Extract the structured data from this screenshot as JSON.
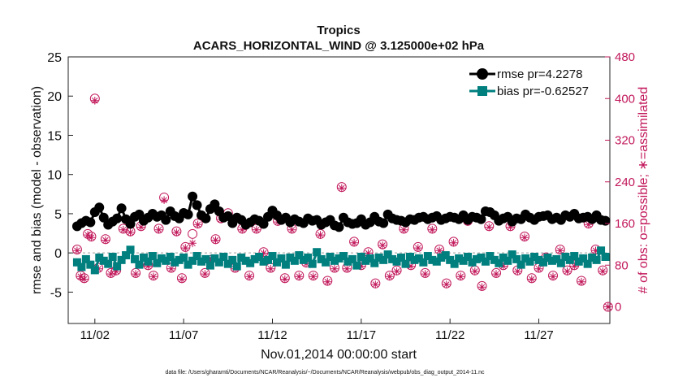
{
  "chart_data": {
    "type": "line",
    "title": "Tropics",
    "subtitle": "ACARS_HORIZONTAL_WIND @ 3.125000e+02 hPa",
    "xlabel": "Nov.01,2014 00:00:00 start",
    "ylabel_left": "rmse and bias (model - observation)",
    "ylabel_right": "# of obs: o=possible; ∗=assimilated",
    "footer": "data file: /Users/gharamti/Documents/NCAR/Reanalysis/~/Documents/NCAR/Reanalysis/webpub/obs_diag_output_2014-11.nc",
    "xlim": [
      0.5,
      31
    ],
    "ylim_left": [
      -9,
      25
    ],
    "ylim_right": [
      -32,
      480
    ],
    "x_ticks": [
      {
        "value": 2,
        "label": "11/02"
      },
      {
        "value": 7,
        "label": "11/07"
      },
      {
        "value": 12,
        "label": "11/12"
      },
      {
        "value": 17,
        "label": "11/17"
      },
      {
        "value": 22,
        "label": "11/22"
      },
      {
        "value": 27,
        "label": "11/27"
      }
    ],
    "y_ticks_left": [
      -5,
      0,
      5,
      10,
      15,
      20,
      25
    ],
    "y_ticks_right": [
      0,
      80,
      160,
      240,
      320,
      400,
      480
    ],
    "colors": {
      "rmse": "#000000",
      "bias": "#007f7f",
      "obs": "#c2185b"
    },
    "legend": [
      {
        "name": "rmse pr=4.2278",
        "series": "rmse"
      },
      {
        "name": "bias pr=-0.62527",
        "series": "bias"
      }
    ],
    "legend_position": "top-right",
    "series": [
      {
        "name": "rmse",
        "axis": "left",
        "marker": "circle",
        "x": [
          1.0,
          1.25,
          1.5,
          1.75,
          2.0,
          2.25,
          2.5,
          2.75,
          3.0,
          3.25,
          3.5,
          3.75,
          4.0,
          4.25,
          4.5,
          4.75,
          5.0,
          5.25,
          5.5,
          5.75,
          6.0,
          6.25,
          6.5,
          6.75,
          7.0,
          7.25,
          7.5,
          7.75,
          8.0,
          8.25,
          8.5,
          8.75,
          9.0,
          9.25,
          9.5,
          9.75,
          10.0,
          10.25,
          10.5,
          10.75,
          11.0,
          11.25,
          11.5,
          11.75,
          12.0,
          12.25,
          12.5,
          12.75,
          13.0,
          13.25,
          13.5,
          13.75,
          14.0,
          14.25,
          14.5,
          14.75,
          15.0,
          15.25,
          15.5,
          15.75,
          16.0,
          16.25,
          16.5,
          16.75,
          17.0,
          17.25,
          17.5,
          17.75,
          18.0,
          18.25,
          18.5,
          18.75,
          19.0,
          19.25,
          19.5,
          19.75,
          20.0,
          20.25,
          20.5,
          20.75,
          21.0,
          21.25,
          21.5,
          21.75,
          22.0,
          22.25,
          22.5,
          22.75,
          23.0,
          23.25,
          23.5,
          23.75,
          24.0,
          24.25,
          24.5,
          24.75,
          25.0,
          25.25,
          25.5,
          25.75,
          26.0,
          26.25,
          26.5,
          26.75,
          27.0,
          27.25,
          27.5,
          27.75,
          28.0,
          28.25,
          28.5,
          28.75,
          29.0,
          29.25,
          29.5,
          29.75,
          30.0,
          30.25,
          30.5,
          30.75
        ],
        "values": [
          3.4,
          3.8,
          4.1,
          3.9,
          5.2,
          5.8,
          4.5,
          3.6,
          4.0,
          4.4,
          5.7,
          4.3,
          3.7,
          4.6,
          4.9,
          4.1,
          4.5,
          5.0,
          4.6,
          4.8,
          4.2,
          5.3,
          4.7,
          4.4,
          5.1,
          4.9,
          7.2,
          6.1,
          4.8,
          4.4,
          5.6,
          6.2,
          5.3,
          4.5,
          4.7,
          3.8,
          4.5,
          4.2,
          3.6,
          3.9,
          4.3,
          4.1,
          3.7,
          4.6,
          5.4,
          4.8,
          4.2,
          4.5,
          3.9,
          4.3,
          4.0,
          3.8,
          4.4,
          4.1,
          4.2,
          3.6,
          3.9,
          4.2,
          3.5,
          3.3,
          4.5,
          3.9,
          3.7,
          3.8,
          4.3,
          3.6,
          3.9,
          4.6,
          4.0,
          3.8,
          4.9,
          4.4,
          4.2,
          4.1,
          3.9,
          4.3,
          4.2,
          4.5,
          4.6,
          4.3,
          4.5,
          4.7,
          4.2,
          4.4,
          4.6,
          4.5,
          4.3,
          4.8,
          4.2,
          4.6,
          4.5,
          4.3,
          5.3,
          5.2,
          4.8,
          4.1,
          4.4,
          4.6,
          4.0,
          4.4,
          4.3,
          4.9,
          4.5,
          4.2,
          4.6,
          4.7,
          4.8,
          4.3,
          4.5,
          4.2,
          4.8,
          4.6,
          5.0,
          4.4,
          4.5,
          4.6,
          4.3,
          4.8,
          4.2,
          4.1
        ]
      },
      {
        "name": "bias",
        "axis": "left",
        "marker": "square",
        "x": [
          1.0,
          1.25,
          1.5,
          1.75,
          2.0,
          2.25,
          2.5,
          2.75,
          3.0,
          3.25,
          3.5,
          3.75,
          4.0,
          4.25,
          4.5,
          4.75,
          5.0,
          5.25,
          5.5,
          5.75,
          6.0,
          6.25,
          6.5,
          6.75,
          7.0,
          7.25,
          7.5,
          7.75,
          8.0,
          8.25,
          8.5,
          8.75,
          9.0,
          9.25,
          9.5,
          9.75,
          10.0,
          10.25,
          10.5,
          10.75,
          11.0,
          11.25,
          11.5,
          11.75,
          12.0,
          12.25,
          12.5,
          12.75,
          13.0,
          13.25,
          13.5,
          13.75,
          14.0,
          14.25,
          14.5,
          14.75,
          15.0,
          15.25,
          15.5,
          15.75,
          16.0,
          16.25,
          16.5,
          16.75,
          17.0,
          17.25,
          17.5,
          17.75,
          18.0,
          18.25,
          18.5,
          18.75,
          19.0,
          19.25,
          19.5,
          19.75,
          20.0,
          20.25,
          20.5,
          20.75,
          21.0,
          21.25,
          21.5,
          21.75,
          22.0,
          22.25,
          22.5,
          22.75,
          23.0,
          23.25,
          23.5,
          23.75,
          24.0,
          24.25,
          24.5,
          24.75,
          25.0,
          25.25,
          25.5,
          25.75,
          26.0,
          26.25,
          26.5,
          26.75,
          27.0,
          27.25,
          27.5,
          27.75,
          28.0,
          28.25,
          28.5,
          28.75,
          29.0,
          29.25,
          29.5,
          29.75,
          30.0,
          30.25,
          30.5,
          30.75
        ],
        "values": [
          -1.2,
          -1.8,
          -0.8,
          -1.5,
          -2.2,
          -0.6,
          -1.0,
          -1.4,
          -0.5,
          -1.7,
          -0.9,
          -0.3,
          0.4,
          -0.8,
          -1.5,
          -0.6,
          -1.1,
          -0.4,
          -1.3,
          -0.7,
          -1.0,
          -0.5,
          -1.2,
          -0.9,
          -0.6,
          -1.5,
          -1.0,
          -0.4,
          -1.1,
          -0.8,
          -1.6,
          -0.7,
          -1.2,
          -0.5,
          -1.4,
          -0.9,
          -1.7,
          -0.6,
          -1.0,
          -1.3,
          -0.8,
          -0.5,
          -1.1,
          -0.9,
          -0.4,
          -1.2,
          -0.7,
          -1.5,
          -0.6,
          -1.0,
          -0.3,
          -0.9,
          -0.6,
          -1.4,
          0.1,
          -0.8,
          -1.2,
          -0.5,
          -1.0,
          -0.7,
          -0.4,
          -1.1,
          -0.8,
          -1.6,
          -0.5,
          -1.0,
          -0.7,
          -1.3,
          -0.6,
          -0.9,
          -0.2,
          -0.8,
          -1.1,
          -0.6,
          -1.4,
          -0.5,
          -0.9,
          -0.7,
          -1.2,
          -0.4,
          -0.9,
          -1.1,
          -0.6,
          -0.3,
          -0.9,
          -1.4,
          -0.7,
          -1.0,
          -0.5,
          -1.2,
          -0.8,
          -0.6,
          -1.1,
          -0.4,
          -0.9,
          -1.3,
          -0.6,
          -1.0,
          -0.2,
          -0.8,
          -1.5,
          -0.7,
          -1.1,
          -0.5,
          -0.9,
          -1.2,
          -0.6,
          -1.0,
          -0.8,
          -1.3,
          -0.5,
          -0.9,
          -0.4,
          -1.1,
          -0.7,
          -1.4,
          -0.6,
          -0.9,
          0.3,
          -0.5
        ]
      },
      {
        "name": "obs_possible",
        "axis": "right",
        "marker": "open-circle",
        "x": [
          1.0,
          1.2,
          1.4,
          1.6,
          1.8,
          2.0,
          2.2,
          2.6,
          2.9,
          3.2,
          3.6,
          4.0,
          4.3,
          4.6,
          5.0,
          5.3,
          5.6,
          5.9,
          6.3,
          6.6,
          6.9,
          7.1,
          7.5,
          7.8,
          8.2,
          8.5,
          8.8,
          9.1,
          9.5,
          9.9,
          10.3,
          10.7,
          11.1,
          11.5,
          11.9,
          12.3,
          12.7,
          13.1,
          13.5,
          13.9,
          14.3,
          14.7,
          15.1,
          15.5,
          15.9,
          16.2,
          16.6,
          17.0,
          17.4,
          17.8,
          18.2,
          18.6,
          19.0,
          19.4,
          19.8,
          20.2,
          20.6,
          21.0,
          21.4,
          21.8,
          22.2,
          22.6,
          23.0,
          23.4,
          23.8,
          24.2,
          24.6,
          25.0,
          25.4,
          25.8,
          26.2,
          26.6,
          27.0,
          27.4,
          27.8,
          28.2,
          28.6,
          29.0,
          29.4,
          29.8,
          30.2,
          30.6,
          30.9
        ],
        "values": [
          110,
          60,
          55,
          140,
          135,
          400,
          75,
          130,
          65,
          70,
          150,
          145,
          65,
          155,
          80,
          60,
          150,
          210,
          75,
          145,
          55,
          115,
          140,
          160,
          65,
          90,
          130,
          170,
          180,
          75,
          150,
          60,
          150,
          105,
          75,
          165,
          55,
          150,
          60,
          85,
          60,
          140,
          50,
          75,
          230,
          75,
          125,
          80,
          105,
          45,
          120,
          60,
          70,
          150,
          80,
          115,
          65,
          150,
          110,
          45,
          125,
          60,
          165,
          70,
          40,
          155,
          65,
          80,
          155,
          70,
          135,
          55,
          75,
          95,
          60,
          110,
          70,
          80,
          50,
          160,
          110,
          70,
          0
        ]
      },
      {
        "name": "obs_assimilated",
        "axis": "right",
        "marker": "asterisk",
        "x": [
          1.0,
          1.2,
          1.4,
          1.6,
          1.8,
          2.0,
          2.2,
          2.6,
          2.9,
          3.2,
          3.6,
          4.0,
          4.3,
          4.6,
          5.0,
          5.3,
          5.6,
          5.9,
          6.3,
          6.6,
          6.9,
          7.1,
          7.5,
          7.8,
          8.2,
          8.5,
          8.8,
          9.1,
          9.5,
          9.9,
          10.3,
          10.7,
          11.1,
          11.5,
          11.9,
          12.3,
          12.7,
          13.1,
          13.5,
          13.9,
          14.3,
          14.7,
          15.1,
          15.5,
          15.9,
          16.2,
          16.6,
          17.0,
          17.4,
          17.8,
          18.2,
          18.6,
          19.0,
          19.4,
          19.8,
          20.2,
          20.6,
          21.0,
          21.4,
          21.8,
          22.2,
          22.6,
          23.0,
          23.4,
          23.8,
          24.2,
          24.6,
          25.0,
          25.4,
          25.8,
          26.2,
          26.6,
          27.0,
          27.4,
          27.8,
          28.2,
          28.6,
          29.0,
          29.4,
          29.8,
          30.2,
          30.6,
          30.9
        ],
        "values": [
          108,
          58,
          53,
          138,
          133,
          396,
          73,
          128,
          63,
          68,
          148,
          143,
          63,
          153,
          78,
          58,
          148,
          205,
          73,
          143,
          53,
          113,
          122,
          158,
          63,
          88,
          128,
          168,
          176,
          73,
          148,
          58,
          148,
          103,
          73,
          163,
          53,
          148,
          58,
          83,
          58,
          138,
          48,
          73,
          228,
          73,
          123,
          78,
          103,
          43,
          118,
          58,
          68,
          148,
          78,
          113,
          63,
          148,
          108,
          43,
          123,
          58,
          163,
          68,
          38,
          153,
          63,
          78,
          153,
          68,
          133,
          53,
          73,
          93,
          58,
          108,
          68,
          78,
          48,
          158,
          108,
          68,
          0
        ]
      }
    ]
  }
}
